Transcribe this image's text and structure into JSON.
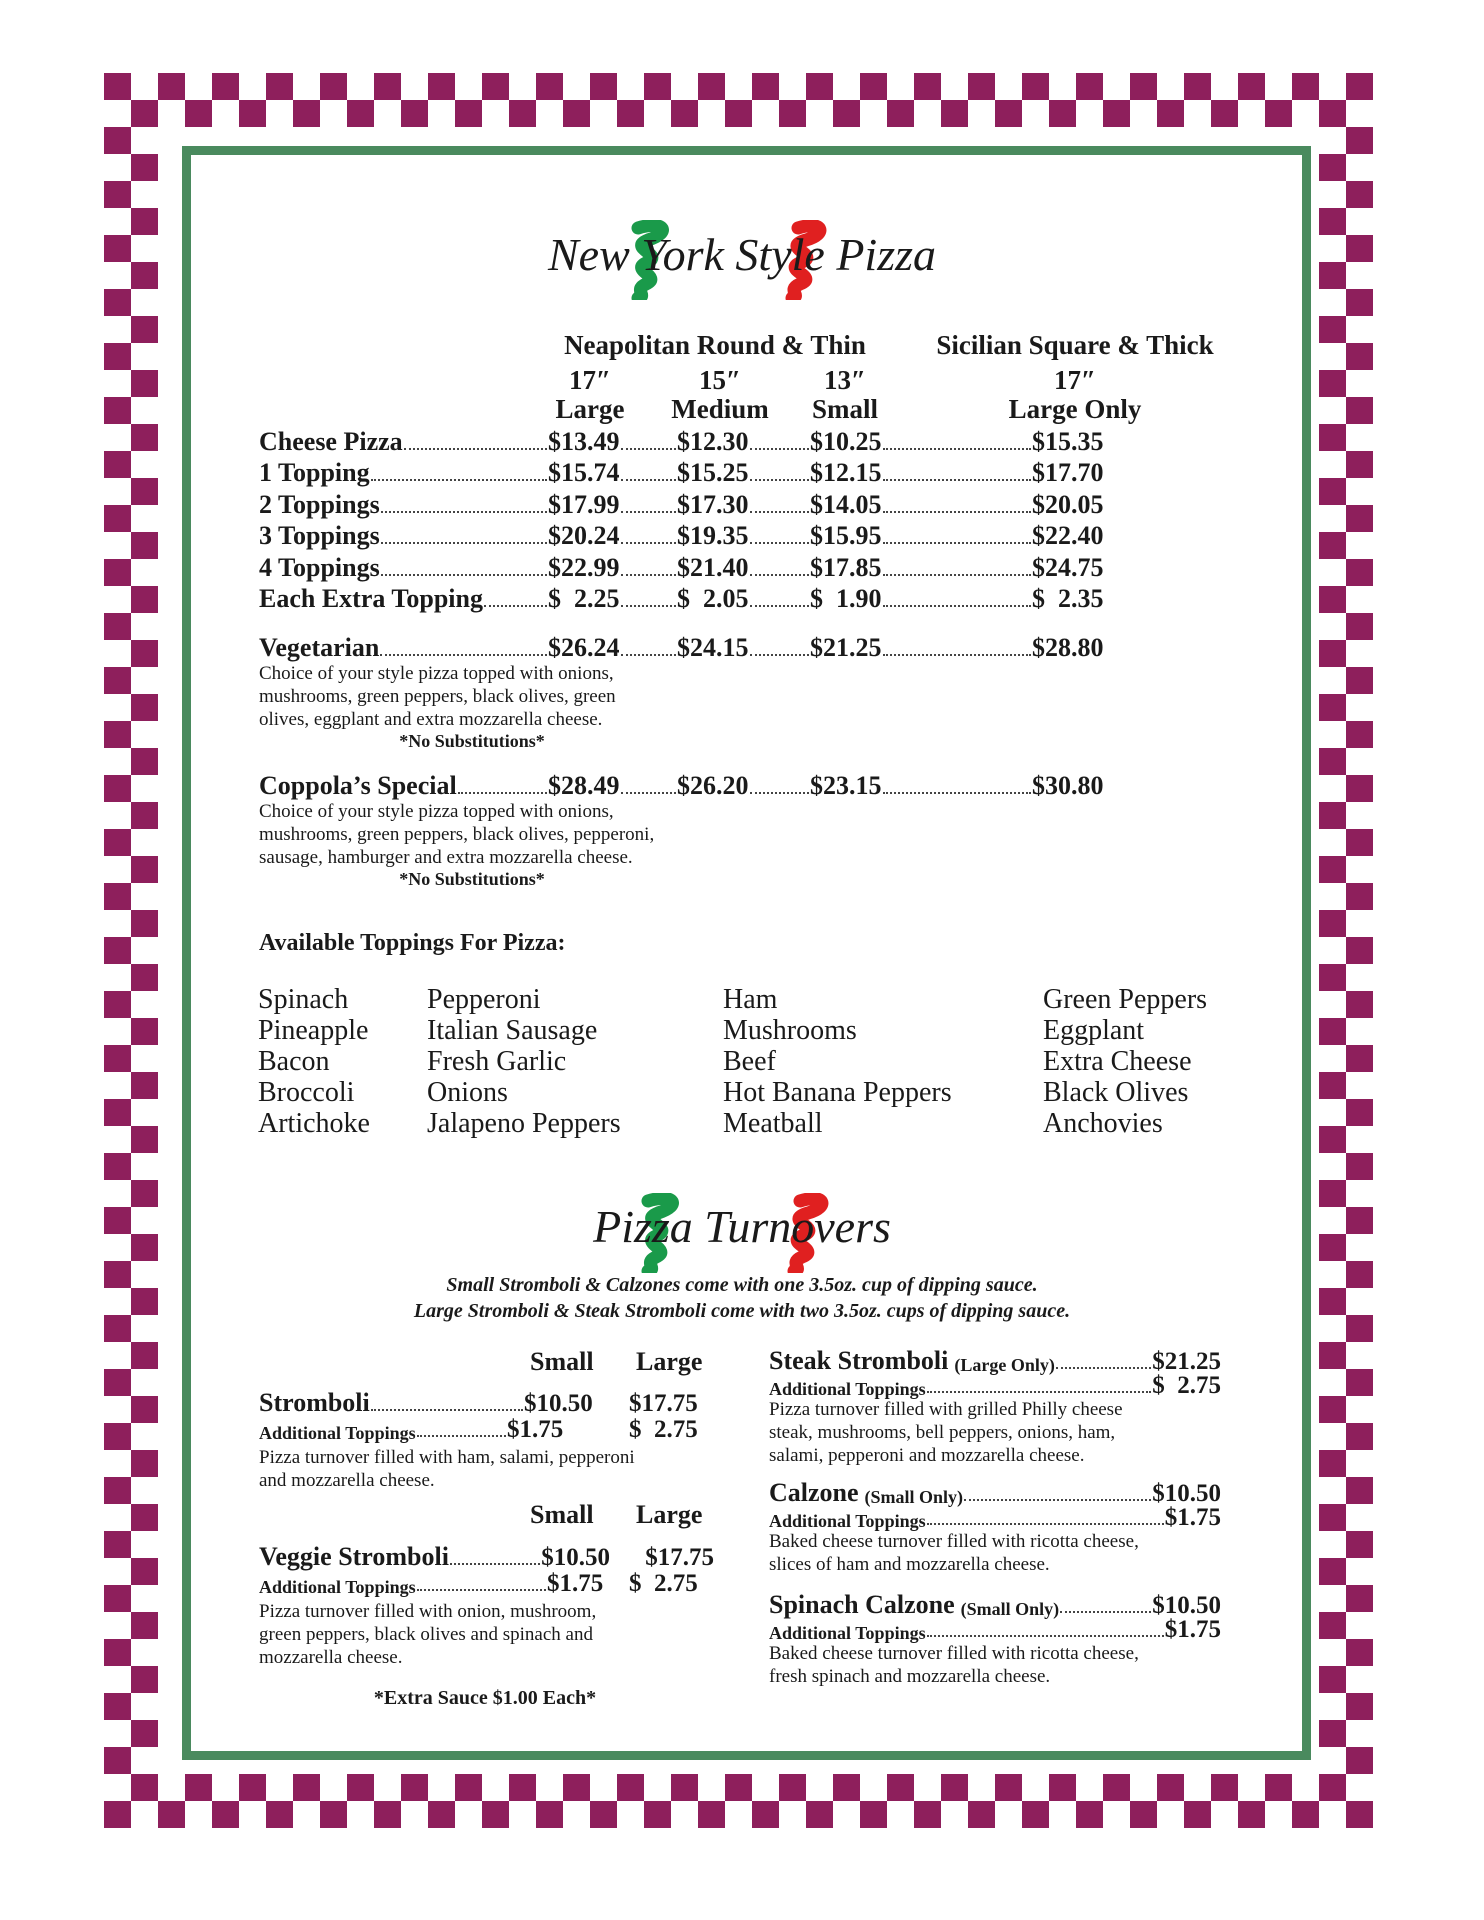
{
  "colors": {
    "checker": "#8e1f5c",
    "frame": "#4a8a5e",
    "swirl_green": "#1a9a4a",
    "swirl_red": "#e02020"
  },
  "pizza": {
    "title": "New York Style Pizza",
    "group_neapolitan": "Neapolitan Round & Thin",
    "group_sicilian": "Sicilian Square & Thick",
    "sizes": [
      {
        "inch": "17″",
        "name": "Large"
      },
      {
        "inch": "15″",
        "name": "Medium"
      },
      {
        "inch": "13″",
        "name": "Small"
      },
      {
        "inch": "17″",
        "name": "Large Only"
      }
    ],
    "rows": [
      {
        "label": "Cheese Pizza",
        "prices": [
          "$13.49",
          "$12.30",
          "$10.25",
          "$15.35"
        ]
      },
      {
        "label": "1 Topping",
        "prices": [
          "$15.74",
          "$15.25",
          "$12.15",
          "$17.70"
        ]
      },
      {
        "label": "2 Toppings",
        "prices": [
          "$17.99",
          "$17.30",
          "$14.05",
          "$20.05"
        ]
      },
      {
        "label": "3 Toppings",
        "prices": [
          "$20.24",
          "$19.35",
          "$15.95",
          "$22.40"
        ]
      },
      {
        "label": "4 Toppings",
        "prices": [
          "$22.99",
          "$21.40",
          "$17.85",
          "$24.75"
        ]
      },
      {
        "label": "Each Extra Topping",
        "prices": [
          "$  2.25",
          "$  2.05",
          "$  1.90",
          "$  2.35"
        ]
      }
    ],
    "specials": [
      {
        "label": "Vegetarian",
        "prices": [
          "$26.24",
          "$24.15",
          "$21.25",
          "$28.80"
        ],
        "desc": [
          "Choice of your style pizza topped with onions,",
          "mushrooms, green peppers, black olives, green",
          "olives, eggplant and extra mozzarella cheese."
        ],
        "note": "*No Substitutions*"
      },
      {
        "label": "Coppola’s Special",
        "prices": [
          "$28.49",
          "$26.20",
          "$23.15",
          "$30.80"
        ],
        "desc": [
          "Choice of your style pizza topped with onions,",
          "mushrooms, green peppers, black olives, pepperoni,",
          "sausage, hamburger and extra mozzarella cheese."
        ],
        "note": "*No Substitutions*"
      }
    ],
    "toppings_heading": "Available Toppings For Pizza:",
    "toppings": [
      [
        "Spinach",
        "Pineapple",
        "Bacon",
        "Broccoli",
        "Artichoke"
      ],
      [
        "Pepperoni",
        "Italian Sausage",
        "Fresh Garlic",
        "Onions",
        "Jalapeno Peppers"
      ],
      [
        "Ham",
        "Mushrooms",
        "Beef",
        "Hot Banana Peppers",
        "Meatball"
      ],
      [
        "Green Peppers",
        "Eggplant",
        "Extra Cheese",
        "Black Olives",
        "Anchovies"
      ]
    ]
  },
  "turnovers": {
    "title": "Pizza Turnovers",
    "notes": [
      "Small Stromboli & Calzones come with one 3.5oz. cup of dipping sauce.",
      "Large Stromboli & Steak Stromboli come with two 3.5oz. cups of dipping sauce."
    ],
    "col_small": "Small",
    "col_large": "Large",
    "addl_label": "Additional Toppings",
    "stromboli": {
      "label": "Stromboli",
      "small": "$10.50",
      "large": "$17.75",
      "addl_small": "$1.75",
      "addl_large": "$  2.75",
      "desc": [
        "Pizza turnover filled with ham, salami, pepperoni",
        "and mozzarella cheese."
      ]
    },
    "veggie": {
      "label": "Veggie Stromboli",
      "small": "$10.50",
      "large": "$17.75",
      "addl_small": "$1.75",
      "addl_large": "$  2.75",
      "desc": [
        "Pizza turnover filled with onion, mushroom,",
        "green peppers, black olives and spinach and",
        "mozzarella cheese."
      ]
    },
    "extra_sauce": "*Extra Sauce $1.00 Each*",
    "right": [
      {
        "label": "Steak Stromboli",
        "qual": "(Large Only)",
        "price": "$21.25",
        "addl": "$  2.75",
        "desc": [
          "Pizza turnover filled with grilled Philly cheese",
          "steak, mushrooms, bell peppers, onions, ham,",
          "salami, pepperoni and mozzarella cheese."
        ]
      },
      {
        "label": "Calzone",
        "qual": "(Small Only)",
        "price": "$10.50",
        "addl": "$1.75",
        "desc": [
          "Baked cheese turnover filled with ricotta cheese,",
          "slices of ham and mozzarella cheese."
        ]
      },
      {
        "label": "Spinach Calzone",
        "qual": "(Small Only)",
        "price": "$10.50",
        "addl": "$1.75",
        "desc": [
          "Baked cheese turnover filled with ricotta cheese,",
          "fresh spinach and mozzarella cheese."
        ]
      }
    ]
  }
}
